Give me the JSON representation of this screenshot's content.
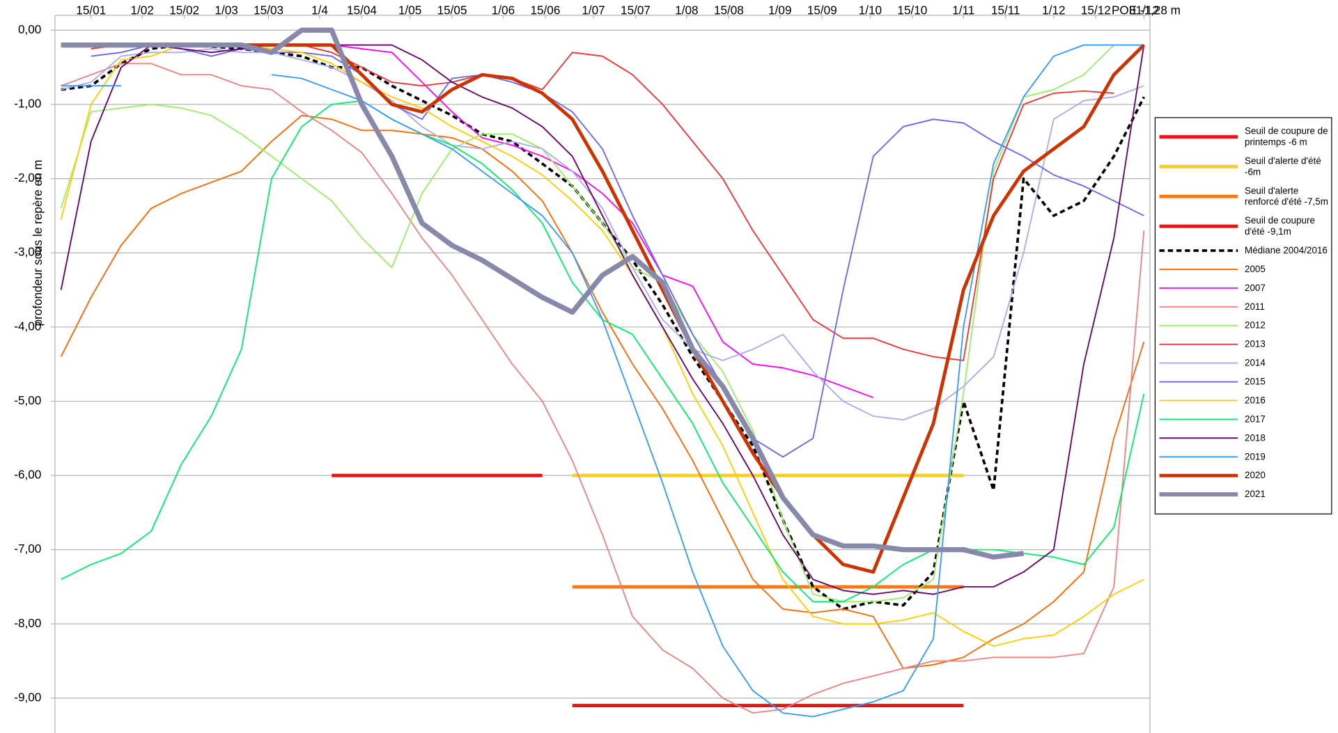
{
  "chart_data": {
    "type": "line",
    "y_label": "profondeur sous le repère en m",
    "annotation": "POE -1,28 m",
    "x": [
      5,
      15,
      25,
      35,
      45,
      55,
      65,
      75,
      85,
      95,
      105,
      115,
      125,
      135,
      145,
      155,
      165,
      175,
      185,
      195,
      205,
      215,
      225,
      235,
      245,
      255,
      265,
      275,
      285,
      295,
      305,
      315,
      325,
      335,
      345,
      355,
      365
    ],
    "xlim": [
      3,
      367
    ],
    "xticks": [
      {
        "value": 15,
        "label": "15/01"
      },
      {
        "value": 32,
        "label": "1/02"
      },
      {
        "value": 46,
        "label": "15/02"
      },
      {
        "value": 60,
        "label": "1/03"
      },
      {
        "value": 74,
        "label": "15/03"
      },
      {
        "value": 91,
        "label": "1/4"
      },
      {
        "value": 105,
        "label": "15/04"
      },
      {
        "value": 121,
        "label": "1/05"
      },
      {
        "value": 135,
        "label": "15/05"
      },
      {
        "value": 152,
        "label": "1/06"
      },
      {
        "value": 166,
        "label": "15/06"
      },
      {
        "value": 182,
        "label": "1/07"
      },
      {
        "value": 196,
        "label": "15/07"
      },
      {
        "value": 213,
        "label": "1/08"
      },
      {
        "value": 227,
        "label": "15/08"
      },
      {
        "value": 244,
        "label": "1/09"
      },
      {
        "value": 258,
        "label": "15/09"
      },
      {
        "value": 274,
        "label": "1/10"
      },
      {
        "value": 288,
        "label": "15/10"
      },
      {
        "value": 305,
        "label": "1/11"
      },
      {
        "value": 319,
        "label": "15/11"
      },
      {
        "value": 335,
        "label": "1/12"
      },
      {
        "value": 349,
        "label": "15/12"
      },
      {
        "value": 365,
        "label": "31/12"
      }
    ],
    "ylim": [
      -9.47,
      0.2
    ],
    "yticks": [
      {
        "value": 0,
        "label": "0,00"
      },
      {
        "value": -1,
        "label": "-1,00"
      },
      {
        "value": -2,
        "label": "-2,00"
      },
      {
        "value": -3,
        "label": "-3,00"
      },
      {
        "value": -4,
        "label": "-4,00"
      },
      {
        "value": -5,
        "label": "-5,00"
      },
      {
        "value": -6,
        "label": "-6,00"
      },
      {
        "value": -7,
        "label": "-7,00"
      },
      {
        "value": -8,
        "label": "-8,00"
      },
      {
        "value": -9,
        "label": "-9,00"
      }
    ],
    "grid": true,
    "legend": "right",
    "series": [
      {
        "name": "Seuil de coupure de printemps -6 m",
        "color": "#ee1111",
        "width": 4,
        "values": [
          null,
          null,
          null,
          null,
          null,
          null,
          null,
          null,
          null,
          -6,
          -6,
          -6,
          -6,
          -6,
          -6,
          -6,
          -6,
          null,
          null,
          null,
          null,
          null,
          null,
          null,
          null,
          null,
          null,
          null,
          null,
          null,
          null,
          null,
          null,
          null,
          null,
          null,
          null
        ]
      },
      {
        "name": "Seuil d'alerte d'été -6m",
        "color": "#f5d020",
        "width": 4,
        "values": [
          null,
          null,
          null,
          null,
          null,
          null,
          null,
          null,
          null,
          null,
          null,
          null,
          null,
          null,
          null,
          null,
          null,
          -6,
          -6,
          -6,
          -6,
          -6,
          -6,
          -6,
          -6,
          -6,
          -6,
          -6,
          -6,
          -6,
          -6,
          null,
          null,
          null,
          null,
          null,
          null
        ]
      },
      {
        "name": "Seuil d'alerte renforcé d'été -7,5m",
        "color": "#ff7711",
        "width": 4,
        "values": [
          null,
          null,
          null,
          null,
          null,
          null,
          null,
          null,
          null,
          null,
          null,
          null,
          null,
          null,
          null,
          null,
          null,
          -7.5,
          -7.5,
          -7.5,
          -7.5,
          -7.5,
          -7.5,
          -7.5,
          -7.5,
          -7.5,
          -7.5,
          -7.5,
          -7.5,
          -7.5,
          -7.5,
          null,
          null,
          null,
          null,
          null,
          null
        ]
      },
      {
        "name": "Seuil de coupure d'été -9,1m",
        "color": "#ee1111",
        "width": 4,
        "values": [
          null,
          null,
          null,
          null,
          null,
          null,
          null,
          null,
          null,
          null,
          null,
          null,
          null,
          null,
          null,
          null,
          null,
          -9.1,
          -9.1,
          -9.1,
          -9.1,
          -9.1,
          -9.1,
          -9.1,
          -9.1,
          -9.1,
          -9.1,
          -9.1,
          -9.1,
          -9.1,
          -9.1,
          null,
          null,
          null,
          null,
          null,
          null
        ]
      },
      {
        "name": "Médiane 2004/2016",
        "color": "#000000",
        "width": 3,
        "dash": true,
        "values": [
          -0.8,
          -0.75,
          -0.45,
          -0.25,
          -0.2,
          -0.22,
          -0.25,
          -0.3,
          -0.35,
          -0.5,
          -0.5,
          -0.75,
          -0.95,
          -1.15,
          -1.4,
          -1.5,
          -1.8,
          -2.1,
          -2.6,
          -3.1,
          -3.7,
          -4.4,
          -5.0,
          -5.6,
          -6.6,
          -7.5,
          -7.8,
          -7.7,
          -7.75,
          -7.3,
          -5.0,
          -6.2,
          -2.0,
          -2.5,
          -2.3,
          -1.7,
          -0.9
        ]
      },
      {
        "name": "2005",
        "color": "#ff6600",
        "width": 1.5,
        "values": [
          -4.4,
          -3.6,
          -2.9,
          -2.4,
          -2.2,
          -2.05,
          -1.9,
          -1.5,
          -1.15,
          -1.2,
          -1.35,
          -1.35,
          -1.4,
          -1.45,
          -1.6,
          -1.9,
          -2.3,
          -3.0,
          -3.8,
          -4.5,
          -5.1,
          -5.8,
          -6.6,
          -7.4,
          -7.8,
          -7.85,
          -7.8,
          -7.9,
          -8.6,
          -8.55,
          -8.45,
          -8.2,
          -8.0,
          -7.7,
          -7.3,
          -5.5,
          -4.2
        ]
      },
      {
        "name": "2007",
        "color": "#ff00ff",
        "width": 1.5,
        "values": [
          null,
          null,
          null,
          null,
          null,
          null,
          null,
          null,
          null,
          -0.2,
          -0.25,
          -0.3,
          -0.7,
          -1.1,
          -1.45,
          -1.55,
          -1.7,
          -1.9,
          -2.2,
          -2.6,
          -3.3,
          -3.45,
          -4.2,
          -4.5,
          -4.55,
          -4.65,
          -4.8,
          -4.95,
          null,
          null,
          null,
          null,
          null,
          null,
          null,
          null,
          null
        ]
      },
      {
        "name": "2011",
        "color": "#f08080",
        "width": 1.5,
        "values": [
          -0.75,
          -0.6,
          -0.45,
          -0.45,
          -0.6,
          -0.6,
          -0.75,
          -0.8,
          -1.1,
          -1.35,
          -1.65,
          -2.2,
          -2.8,
          -3.3,
          -3.9,
          -4.5,
          -5.0,
          -5.8,
          -6.8,
          -7.9,
          -8.35,
          -8.6,
          -9.0,
          -9.2,
          -9.15,
          -8.95,
          -8.8,
          -8.7,
          -8.6,
          -8.5,
          -8.5,
          -8.45,
          -8.45,
          -8.45,
          -8.4,
          -7.5,
          -2.7
        ]
      },
      {
        "name": "2012",
        "color": "#99ee66",
        "width": 1.5,
        "values": [
          -2.4,
          -1.1,
          -1.05,
          -1.0,
          -1.05,
          -1.15,
          -1.4,
          -1.7,
          -2.0,
          -2.3,
          -2.8,
          -3.2,
          -2.2,
          -1.6,
          -1.4,
          -1.4,
          -1.6,
          -2.1,
          -2.6,
          -3.2,
          -3.4,
          -4.1,
          -4.6,
          -5.4,
          -6.6,
          -7.6,
          -7.7,
          -7.7,
          -7.65,
          -7.4,
          -4.9,
          -1.9,
          -0.9,
          -0.8,
          -0.6,
          -0.2,
          null
        ]
      },
      {
        "name": "2013",
        "color": "#ee3333",
        "width": 1.5,
        "values": [
          null,
          -0.25,
          -0.2,
          -0.2,
          -0.2,
          -0.2,
          -0.2,
          -0.2,
          -0.2,
          -0.3,
          -0.5,
          -0.7,
          -0.75,
          -0.7,
          -0.6,
          -0.65,
          -0.8,
          -0.3,
          -0.35,
          -0.6,
          -1.0,
          -1.5,
          -2.0,
          -2.7,
          -3.3,
          -3.9,
          -4.15,
          -4.15,
          -4.3,
          -4.4,
          -4.45,
          -2.0,
          -1.0,
          -0.85,
          -0.82,
          -0.85,
          null
        ]
      },
      {
        "name": "2014",
        "color": "#aaaaee",
        "width": 1.5,
        "values": [
          -0.8,
          -0.7,
          -0.35,
          -0.3,
          -0.3,
          -0.25,
          -0.3,
          -0.3,
          -0.4,
          -0.5,
          -0.7,
          -0.95,
          -1.3,
          -1.55,
          -1.6,
          -1.5,
          -1.6,
          -1.9,
          -2.4,
          -3.2,
          -3.9,
          -4.3,
          -4.45,
          -4.3,
          -4.1,
          -4.6,
          -5.0,
          -5.2,
          -5.25,
          -5.1,
          -4.8,
          -4.4,
          -3.0,
          -1.2,
          -0.95,
          -0.9,
          -0.75
        ]
      },
      {
        "name": "2015",
        "color": "#6666ee",
        "width": 1.5,
        "values": [
          null,
          -0.35,
          -0.3,
          -0.2,
          -0.25,
          -0.35,
          -0.25,
          -0.3,
          -0.3,
          -0.35,
          -0.6,
          -1.0,
          -1.2,
          -0.65,
          -0.6,
          -0.7,
          -0.85,
          -1.1,
          -1.6,
          -2.5,
          -3.3,
          -4.1,
          -4.8,
          -5.5,
          -5.75,
          -5.5,
          -3.5,
          -1.7,
          -1.3,
          -1.2,
          -1.25,
          -1.5,
          -1.7,
          -1.95,
          -2.1,
          -2.3,
          -2.5
        ]
      },
      {
        "name": "2016",
        "color": "#ffcc00",
        "width": 1.5,
        "values": [
          -2.55,
          -1.0,
          -0.4,
          -0.35,
          -0.2,
          -0.2,
          -0.2,
          -0.25,
          -0.3,
          -0.45,
          -0.7,
          -0.9,
          -1.05,
          -1.3,
          -1.5,
          -1.7,
          -1.95,
          -2.3,
          -2.7,
          -3.3,
          -4.0,
          -4.9,
          -5.6,
          -6.5,
          -7.4,
          -7.9,
          -8.0,
          -8.0,
          -7.95,
          -7.85,
          -8.1,
          -8.3,
          -8.2,
          -8.15,
          -7.9,
          -7.6,
          -7.4
        ]
      },
      {
        "name": "2017",
        "color": "#00ee66",
        "width": 1.5,
        "values": [
          -7.4,
          -7.2,
          -7.05,
          -6.75,
          -5.85,
          -5.2,
          -4.3,
          -2.0,
          -1.3,
          -1.0,
          -0.95,
          -1.2,
          -1.4,
          -1.55,
          -1.8,
          -2.15,
          -2.6,
          -3.4,
          -3.9,
          -4.1,
          -4.7,
          -5.3,
          -6.1,
          -6.7,
          -7.3,
          -7.7,
          -7.7,
          -7.5,
          -7.2,
          -7.0,
          -7.0,
          -7.0,
          -7.05,
          -7.1,
          -7.2,
          -6.7,
          -4.9
        ]
      },
      {
        "name": "2018",
        "color": "#660066",
        "width": 1.5,
        "values": [
          -3.5,
          -1.5,
          -0.5,
          -0.2,
          -0.25,
          -0.3,
          -0.25,
          -0.2,
          -0.2,
          -0.2,
          -0.2,
          -0.2,
          -0.4,
          -0.7,
          -0.9,
          -1.05,
          -1.3,
          -1.7,
          -2.5,
          -3.3,
          -4.0,
          -4.7,
          -5.3,
          -6.0,
          -6.8,
          -7.4,
          -7.55,
          -7.6,
          -7.55,
          -7.6,
          -7.5,
          -7.5,
          -7.3,
          -7.0,
          -4.5,
          -2.8,
          -0.2
        ]
      },
      {
        "name": "2019",
        "color": "#3399ff",
        "width": 1.5,
        "values": [
          -0.75,
          -0.75,
          -0.75,
          null,
          null,
          null,
          null,
          -0.6,
          -0.65,
          -0.8,
          -0.95,
          -1.2,
          -1.4,
          -1.6,
          -1.9,
          -2.2,
          -2.5,
          -3.0,
          -3.9,
          -5.0,
          -6.1,
          -7.3,
          -8.3,
          -8.9,
          -9.2,
          -9.25,
          -9.15,
          -9.05,
          -8.9,
          -8.2,
          -4.0,
          -1.8,
          -0.9,
          -0.35,
          -0.2,
          -0.2,
          -0.2
        ]
      },
      {
        "name": "2020",
        "color": "#cc3300",
        "width": 4,
        "values": [
          null,
          -0.2,
          -0.2,
          -0.2,
          -0.2,
          -0.2,
          -0.2,
          -0.2,
          -0.2,
          -0.2,
          -0.6,
          -1.0,
          -1.1,
          -0.8,
          -0.6,
          -0.65,
          -0.85,
          -1.2,
          -1.9,
          -2.7,
          -3.5,
          -4.3,
          -5.0,
          -5.7,
          -6.3,
          -6.8,
          -7.2,
          -7.3,
          -6.3,
          -5.3,
          -3.5,
          -2.5,
          -1.9,
          -1.6,
          -1.3,
          -0.6,
          -0.2
        ]
      },
      {
        "name": "2021",
        "color": "#8888aa",
        "width": 6,
        "values": [
          -0.2,
          -0.2,
          -0.2,
          -0.2,
          -0.2,
          -0.2,
          -0.2,
          -0.3,
          0.0,
          0.0,
          -1.0,
          -1.7,
          -2.6,
          -2.9,
          -3.1,
          -3.35,
          -3.6,
          -3.8,
          -3.3,
          -3.05,
          -3.4,
          -4.3,
          -4.8,
          -5.5,
          -6.3,
          -6.8,
          -6.95,
          -6.95,
          -7.0,
          -7.0,
          -7.0,
          -7.1,
          -7.05,
          null,
          null,
          null,
          null
        ]
      }
    ]
  }
}
